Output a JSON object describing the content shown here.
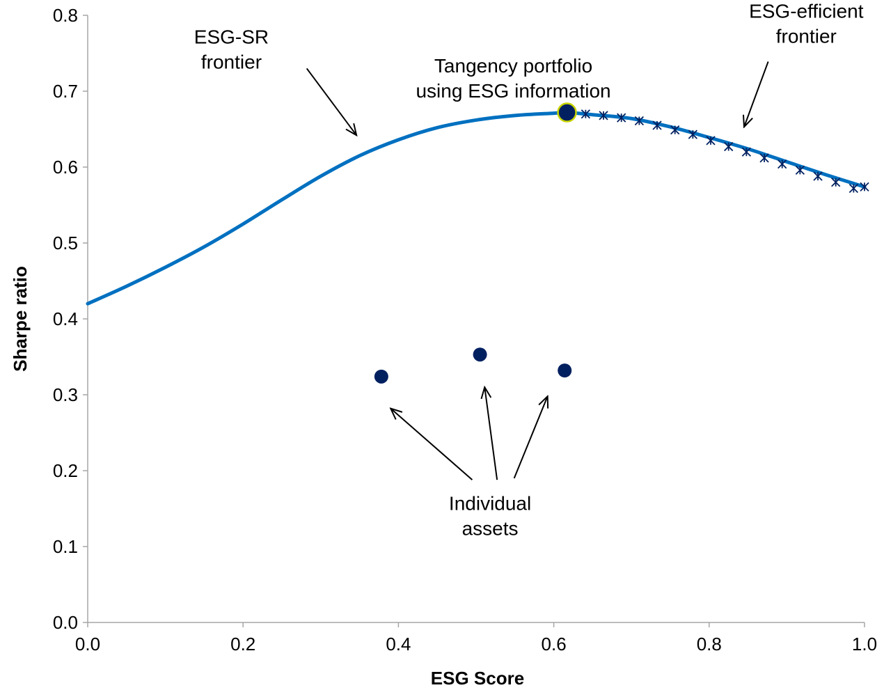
{
  "chart_data": {
    "type": "line",
    "title": "",
    "xlabel": "ESG Score",
    "ylabel": "Sharpe ratio",
    "xlim": [
      0,
      1
    ],
    "ylim": [
      0,
      0.8
    ],
    "x_ticks": [
      0.0,
      0.2,
      0.4,
      0.6,
      0.8,
      1.0
    ],
    "x_tick_labels": [
      "0.0",
      "0.2",
      "0.4",
      "0.6",
      "0.8",
      "1.0"
    ],
    "y_ticks": [
      0.0,
      0.1,
      0.2,
      0.3,
      0.4,
      0.5,
      0.6,
      0.7,
      0.8
    ],
    "y_tick_labels": [
      "0.0",
      "0.1",
      "0.2",
      "0.3",
      "0.4",
      "0.5",
      "0.6",
      "0.7",
      "0.8"
    ],
    "grid": false,
    "legend": "none",
    "colors": {
      "frontier": "#0070C0",
      "markers": "#002060",
      "tangency_outline": "#C8D400",
      "axis": "#A6A6A6"
    },
    "series": [
      {
        "type": "line",
        "x": [
          0.0,
          0.05,
          0.1,
          0.15,
          0.2,
          0.25,
          0.3,
          0.35,
          0.4,
          0.45,
          0.5,
          0.55,
          0.6,
          0.617,
          0.65,
          0.7,
          0.75,
          0.8,
          0.85,
          0.9,
          0.95,
          1.0
        ],
        "y": [
          0.42,
          0.443,
          0.468,
          0.495,
          0.525,
          0.557,
          0.588,
          0.615,
          0.636,
          0.652,
          0.662,
          0.668,
          0.671,
          0.672,
          0.669,
          0.664,
          0.653,
          0.639,
          0.624,
          0.607,
          0.59,
          0.574
        ]
      },
      {
        "type": "scatter",
        "marker": "asterisk",
        "x": [
          0.641,
          0.664,
          0.687,
          0.71,
          0.733,
          0.756,
          0.779,
          0.802,
          0.825,
          0.848,
          0.871,
          0.894,
          0.917,
          0.94,
          0.963,
          0.986,
          1.0
        ],
        "y": [
          0.67,
          0.668,
          0.665,
          0.661,
          0.655,
          0.649,
          0.643,
          0.635,
          0.627,
          0.62,
          0.612,
          0.604,
          0.596,
          0.588,
          0.58,
          0.572,
          0.574
        ]
      },
      {
        "type": "scatter",
        "marker": "circle",
        "x": [
          0.378,
          0.505,
          0.614
        ],
        "y": [
          0.324,
          0.353,
          0.332
        ]
      },
      {
        "type": "scatter",
        "marker": "tangency-circle",
        "x": [
          0.617
        ],
        "y": [
          0.672
        ]
      }
    ],
    "annotations": [
      {
        "lines": [
          "ESG-SR",
          "frontier"
        ],
        "text_at": [
          0.185,
          0.763
        ],
        "arrow_from": [
          0.282,
          0.73
        ],
        "arrow_to": [
          0.346,
          0.642
        ]
      },
      {
        "lines": [
          "Tangency portfolio",
          "using ESG information"
        ],
        "text_at": [
          0.548,
          0.725
        ],
        "arrow_from": null,
        "arrow_to": null
      },
      {
        "lines": [
          "ESG-efficient",
          "frontier"
        ],
        "text_at": [
          0.925,
          0.797
        ],
        "arrow_from": [
          0.876,
          0.739
        ],
        "arrow_to": [
          0.845,
          0.653
        ]
      },
      {
        "lines": [
          "Individual",
          "assets"
        ],
        "text_at": [
          0.518,
          0.148
        ],
        "arrows": [
          {
            "from": [
              0.495,
              0.188
            ],
            "to": [
              0.39,
              0.282
            ]
          },
          {
            "from": [
              0.527,
              0.188
            ],
            "to": [
              0.511,
              0.31
            ]
          },
          {
            "from": [
              0.549,
              0.19
            ],
            "to": [
              0.592,
              0.298
            ]
          }
        ]
      }
    ]
  }
}
